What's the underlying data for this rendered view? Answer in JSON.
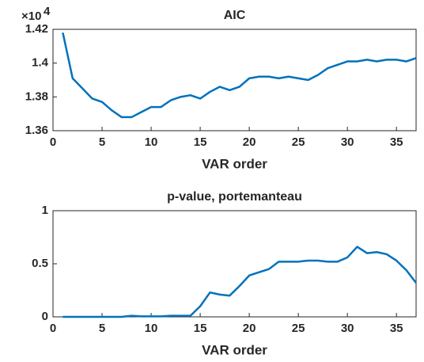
{
  "chart_data": [
    {
      "type": "line",
      "title": "AIC",
      "x_label": "VAR order",
      "y_scale_base": "×10",
      "y_scale_exponent": "4",
      "x": [
        1,
        2,
        3,
        4,
        5,
        6,
        7,
        8,
        9,
        10,
        11,
        12,
        13,
        14,
        15,
        16,
        17,
        18,
        19,
        20,
        21,
        22,
        23,
        24,
        25,
        26,
        27,
        28,
        29,
        30,
        31,
        32,
        33,
        34,
        35,
        36,
        37
      ],
      "series": [
        {
          "color": "#0072bd",
          "values": [
            1.418,
            1.391,
            1.385,
            1.379,
            1.377,
            1.372,
            1.368,
            1.368,
            1.371,
            1.374,
            1.374,
            1.378,
            1.38,
            1.381,
            1.379,
            1.383,
            1.386,
            1.384,
            1.386,
            1.391,
            1.392,
            1.392,
            1.391,
            1.392,
            1.391,
            1.39,
            1.393,
            1.397,
            1.399,
            1.401,
            1.401,
            1.402,
            1.401,
            1.402,
            1.402,
            1.401,
            1.403
          ]
        }
      ],
      "xlim": [
        0,
        37
      ],
      "xticks": [
        0,
        5,
        10,
        15,
        20,
        25,
        30,
        35
      ],
      "ylim": [
        1.36,
        1.42
      ],
      "yticks": [
        1.36,
        1.38,
        1.4,
        1.42
      ]
    },
    {
      "type": "line",
      "title": "p-value, portemanteau",
      "x_label": "VAR order",
      "x": [
        1,
        2,
        3,
        4,
        5,
        6,
        7,
        8,
        9,
        10,
        11,
        12,
        13,
        14,
        15,
        16,
        17,
        18,
        19,
        20,
        21,
        22,
        23,
        24,
        25,
        26,
        27,
        28,
        29,
        30,
        31,
        32,
        33,
        34,
        35,
        36,
        37
      ],
      "series": [
        {
          "color": "#0072bd",
          "values": [
            0,
            0,
            0,
            0,
            0,
            0,
            0,
            0.01,
            0.005,
            0.005,
            0.005,
            0.01,
            0.01,
            0.01,
            0.1,
            0.23,
            0.21,
            0.2,
            0.29,
            0.39,
            0.42,
            0.45,
            0.52,
            0.52,
            0.52,
            0.53,
            0.53,
            0.52,
            0.52,
            0.56,
            0.66,
            0.6,
            0.61,
            0.59,
            0.53,
            0.44,
            0.32
          ]
        }
      ],
      "xlim": [
        0,
        37
      ],
      "xticks": [
        0,
        5,
        10,
        15,
        20,
        25,
        30,
        35
      ],
      "ylim": [
        0,
        1
      ],
      "yticks": [
        0,
        0.5,
        1
      ]
    }
  ]
}
